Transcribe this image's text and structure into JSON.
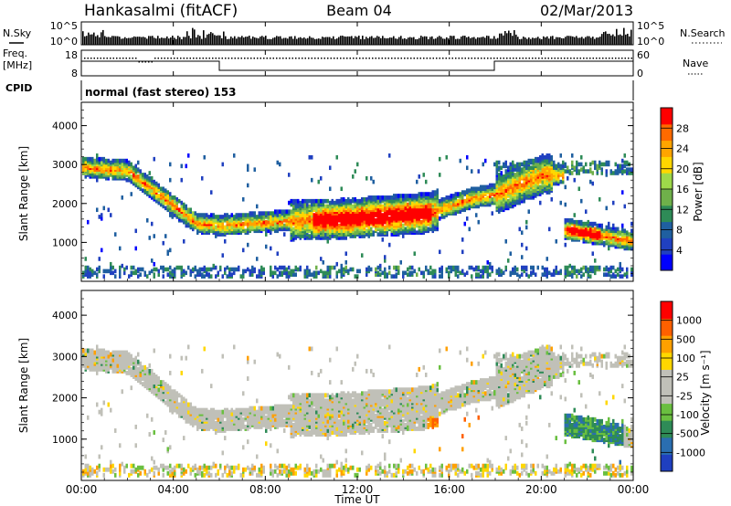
{
  "header": {
    "station": "Hankasalmi (fitACF)",
    "beam": "Beam 04",
    "date": "02/Mar/2013"
  },
  "meta_panels": {
    "nsky_label": "N.Sky",
    "nsky_ticks": [
      "10^5",
      "10^0"
    ],
    "nsearch_label": "N.Search",
    "nsearch_ticks": [
      "10^5",
      "10^0"
    ],
    "freq_label_1": "Freq.",
    "freq_label_2": "[MHz]",
    "freq_ticks": [
      "18",
      "8"
    ],
    "nave_label": "Nave",
    "nave_ticks": [
      "60",
      "0"
    ],
    "cpid_label": "CPID",
    "cpid_text": "normal (fast stereo) 153"
  },
  "chart_data": [
    {
      "type": "heatmap",
      "title": "",
      "xlabel": "",
      "ylabel": "Slant Range [km]",
      "ylim": [
        0,
        4600
      ],
      "y_ticks": [
        "4000",
        "3000",
        "2000",
        "1000"
      ],
      "colorbar": {
        "label": "Power [dB]",
        "ticks": [
          "28",
          "24",
          "20",
          "16",
          "12",
          "8",
          "4"
        ],
        "colors": [
          "#0000ff",
          "#2040c0",
          "#1f5fa0",
          "#2e8b57",
          "#6fb04a",
          "#9ed94a",
          "#ffd700",
          "#ffa500",
          "#ff6a00",
          "#ff0000"
        ]
      }
    },
    {
      "type": "heatmap",
      "title": "",
      "xlabel": "Time UT",
      "ylabel": "Slant Range [km]",
      "ylim": [
        0,
        4600
      ],
      "y_ticks": [
        "4000",
        "3000",
        "2000",
        "1000"
      ],
      "x_ticks": [
        "00:00",
        "04:00",
        "08:00",
        "12:00",
        "16:00",
        "20:00",
        "00:00"
      ],
      "colorbar": {
        "label": "Velocity [m s⁻¹]",
        "ticks": [
          "1000",
          "500",
          "100",
          "25",
          "-25",
          "-100",
          "-500",
          "-1000"
        ],
        "colors": [
          "#1f3fbf",
          "#2a6eb0",
          "#2e8b57",
          "#6abf40",
          "#c0c0b8",
          "#c0c0b8",
          "#ffd700",
          "#ffa000",
          "#ff6000",
          "#ff0000"
        ]
      }
    }
  ]
}
